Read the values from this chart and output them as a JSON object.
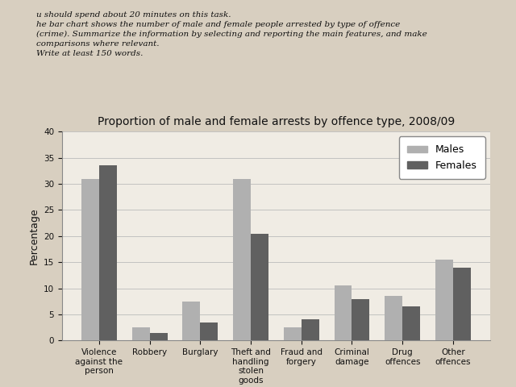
{
  "title": "Proportion of male and female arrests by offence type, 2008/09",
  "top_text_lines": [
    "u should spend about 20 minutes on this task.",
    "he bar chart shows the number of male and female people arrested by type of offence",
    "(crime). Summarize the information by selecting and reporting the main features, and make",
    "comparisons where relevant.",
    "Write at least 150 words."
  ],
  "categories": [
    "Violence\nagainst the\nperson",
    "Robbery",
    "Burglary",
    "Theft and\nhandling\nstolen\ngoods",
    "Fraud and\nforgery",
    "Criminal\ndamage",
    "Drug\noffences",
    "Other\noffences"
  ],
  "males": [
    31,
    2.5,
    7.5,
    31,
    2.5,
    10.5,
    8.5,
    15.5
  ],
  "females": [
    33.5,
    1.5,
    3.5,
    20.5,
    4,
    8,
    6.5,
    14
  ],
  "males_color": "#b0b0b0",
  "females_color": "#606060",
  "ylabel": "Percentage",
  "ylim": [
    0,
    40
  ],
  "yticks": [
    0,
    5,
    10,
    15,
    20,
    25,
    30,
    35,
    40
  ],
  "legend_labels": [
    "Males",
    "Females"
  ],
  "bar_width": 0.35,
  "title_fontsize": 10,
  "axis_label_fontsize": 9,
  "tick_fontsize": 7.5,
  "legend_fontsize": 9,
  "page_bg_color": "#d8cfc0",
  "chart_bg_color": "#f0ece4",
  "text_color": "#111111"
}
